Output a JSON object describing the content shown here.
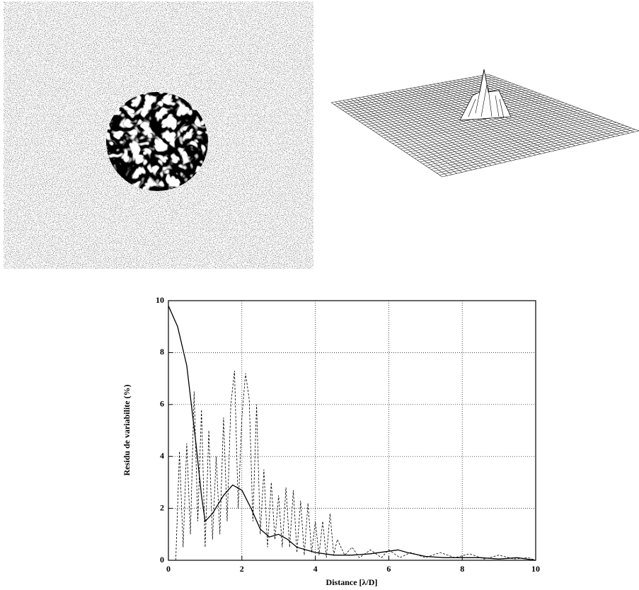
{
  "chart_data": {
    "type": "line",
    "xlabel": "Distance [λ/D]",
    "ylabel": "Residu de variabilite (%)",
    "xlim": [
      0,
      10
    ],
    "ylim": [
      0,
      10
    ],
    "xticks": [
      0,
      2,
      4,
      6,
      8,
      10
    ],
    "yticks": [
      0,
      2,
      4,
      6,
      8,
      10
    ],
    "grid": true,
    "series": [
      {
        "color": "#000000",
        "dashed": false,
        "x": [
          0,
          0.25,
          0.5,
          0.75,
          0.9,
          1.0,
          1.2,
          1.5,
          1.75,
          2.0,
          2.25,
          2.5,
          2.75,
          3.0,
          3.25,
          3.5,
          4.0,
          4.5,
          5.0,
          5.5,
          6.0,
          6.25,
          6.5,
          7.0,
          7.5,
          8.0,
          8.5,
          9.0,
          9.5,
          10
        ],
        "values": [
          9.8,
          9.0,
          7.5,
          4.5,
          2.5,
          1.5,
          1.8,
          2.5,
          2.9,
          2.7,
          2.0,
          1.2,
          0.9,
          1.0,
          0.8,
          0.5,
          0.3,
          0.2,
          0.2,
          0.25,
          0.35,
          0.4,
          0.3,
          0.15,
          0.1,
          0.1,
          0.1,
          0.05,
          0.1,
          0
        ]
      },
      {
        "color": "#000000",
        "dashed": true,
        "x": [
          0.2,
          0.3,
          0.4,
          0.5,
          0.6,
          0.7,
          0.8,
          0.9,
          1.0,
          1.1,
          1.2,
          1.3,
          1.4,
          1.5,
          1.6,
          1.7,
          1.8,
          1.9,
          2.0,
          2.1,
          2.2,
          2.3,
          2.4,
          2.5,
          2.6,
          2.7,
          2.8,
          2.9,
          3.0,
          3.1,
          3.2,
          3.3,
          3.4,
          3.5,
          3.6,
          3.7,
          3.8,
          3.9,
          4.0,
          4.1,
          4.2,
          4.3,
          4.4,
          4.5,
          4.6,
          4.8,
          5.0,
          5.2,
          5.5,
          5.8,
          6.0,
          6.3,
          6.6,
          7.0,
          7.4,
          7.8,
          8.2,
          8.6,
          9.0,
          9.4,
          9.8,
          10
        ],
        "values": [
          0,
          4.2,
          0.5,
          4.5,
          1,
          6.5,
          1.5,
          5.8,
          0.5,
          5,
          0.8,
          4,
          1,
          5.5,
          1.5,
          6,
          7.3,
          2,
          5.5,
          7.2,
          6.2,
          1.5,
          6,
          1,
          3.5,
          0.5,
          3,
          0.8,
          2.5,
          0.5,
          2.8,
          0.5,
          2.7,
          0.3,
          2.3,
          0.2,
          2.2,
          0.3,
          1.5,
          0.2,
          1.5,
          0.1,
          1.8,
          0.2,
          0.8,
          0.2,
          0.5,
          0.1,
          0.4,
          0.1,
          0.4,
          0.1,
          0.3,
          0.1,
          0.3,
          0.1,
          0.25,
          0.05,
          0.2,
          0.05,
          0.1,
          0
        ]
      }
    ]
  }
}
